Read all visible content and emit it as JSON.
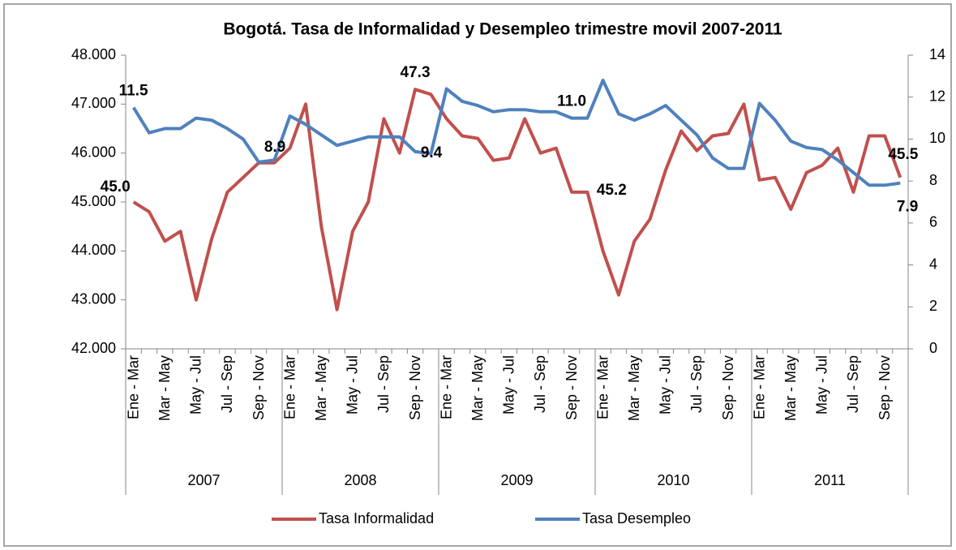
{
  "chart_data": {
    "type": "line",
    "title": "Bogotá. Tasa de Informalidad y Desempleo trimestre movil 2007-2011",
    "categories": [
      "Ene - Mar",
      null,
      "Mar - May",
      null,
      "May - Jul",
      null,
      "Jul - Sep",
      null,
      "Sep - Nov",
      null,
      "Ene - Mar",
      null,
      "Mar - May",
      null,
      "May - Jul",
      null,
      "Jul - Sep",
      null,
      "Sep - Nov",
      null,
      "Ene - Mar",
      null,
      "Mar - May",
      null,
      "May - Jul",
      null,
      "Jul - Sep",
      null,
      "Sep - Nov",
      null,
      "Ene - Mar",
      null,
      "Mar - May",
      null,
      "May - Jul",
      null,
      "Jul - Sep",
      null,
      "Sep - Nov",
      null,
      "Ene - Mar",
      null,
      "Mar - May",
      null,
      "May - Jul",
      null,
      "Jul - Sep",
      null,
      "Sep - Nov",
      null
    ],
    "groups": [
      "2007",
      "2008",
      "2009",
      "2010",
      "2011"
    ],
    "series": [
      {
        "name": "Tasa Informalidad",
        "color": "#c0504d",
        "axis": "y",
        "values": [
          45.0,
          44.8,
          44.2,
          44.4,
          43.0,
          44.25,
          45.2,
          45.5,
          45.8,
          45.8,
          46.1,
          47.0,
          44.5,
          42.8,
          44.4,
          45.0,
          46.7,
          46.0,
          47.3,
          47.2,
          46.7,
          46.35,
          46.3,
          45.85,
          45.9,
          46.7,
          46.0,
          46.1,
          45.2,
          45.2,
          44.0,
          43.1,
          44.2,
          44.65,
          45.65,
          46.45,
          46.05,
          46.35,
          46.4,
          47.0,
          45.45,
          45.5,
          44.85,
          45.6,
          45.75,
          46.1,
          45.2,
          46.35,
          46.35,
          45.5
        ],
        "value_labels": [
          "45.0",
          null,
          null,
          null,
          null,
          null,
          null,
          null,
          null,
          null,
          null,
          null,
          null,
          null,
          null,
          null,
          null,
          null,
          "47.3",
          null,
          null,
          null,
          null,
          null,
          null,
          null,
          null,
          null,
          null,
          "45.2",
          null,
          null,
          null,
          null,
          null,
          null,
          null,
          null,
          null,
          null,
          null,
          null,
          null,
          null,
          null,
          null,
          null,
          null,
          null,
          "45.5"
        ]
      },
      {
        "name": "Tasa Desempleo",
        "color": "#4f81bd",
        "axis": "y2",
        "values": [
          11.5,
          10.3,
          10.5,
          10.5,
          11.0,
          10.9,
          10.5,
          10.0,
          8.9,
          9.0,
          11.1,
          10.7,
          10.2,
          9.7,
          9.9,
          10.1,
          10.1,
          10.1,
          9.4,
          9.3,
          12.4,
          11.8,
          11.6,
          11.3,
          11.4,
          11.4,
          11.3,
          11.3,
          11.0,
          11.0,
          12.8,
          11.2,
          10.9,
          11.2,
          11.6,
          10.9,
          10.2,
          9.1,
          8.6,
          8.6,
          11.7,
          10.9,
          9.9,
          9.6,
          9.5,
          9.0,
          8.4,
          7.8,
          7.8,
          7.9
        ],
        "value_labels": [
          "11.5",
          null,
          null,
          null,
          null,
          null,
          null,
          null,
          "8.9",
          null,
          null,
          null,
          null,
          null,
          null,
          null,
          null,
          null,
          "9.4",
          null,
          null,
          null,
          null,
          null,
          null,
          null,
          null,
          null,
          "11.0",
          null,
          null,
          null,
          null,
          null,
          null,
          null,
          null,
          null,
          null,
          null,
          null,
          null,
          null,
          null,
          null,
          null,
          null,
          null,
          null,
          "7.9"
        ]
      }
    ],
    "ylim": [
      42,
      48
    ],
    "yticks": [
      {
        "value": 42,
        "label": "42.000"
      },
      {
        "value": 43,
        "label": "43.000"
      },
      {
        "value": 44,
        "label": "44.000"
      },
      {
        "value": 45,
        "label": "45.000"
      },
      {
        "value": 46,
        "label": "46.000"
      },
      {
        "value": 47,
        "label": "47.000"
      },
      {
        "value": 48,
        "label": "48.000"
      }
    ],
    "y2lim": [
      0,
      14
    ],
    "y2ticks": [
      0,
      2,
      4,
      6,
      8,
      10,
      12,
      14
    ],
    "legend": "bottom"
  }
}
